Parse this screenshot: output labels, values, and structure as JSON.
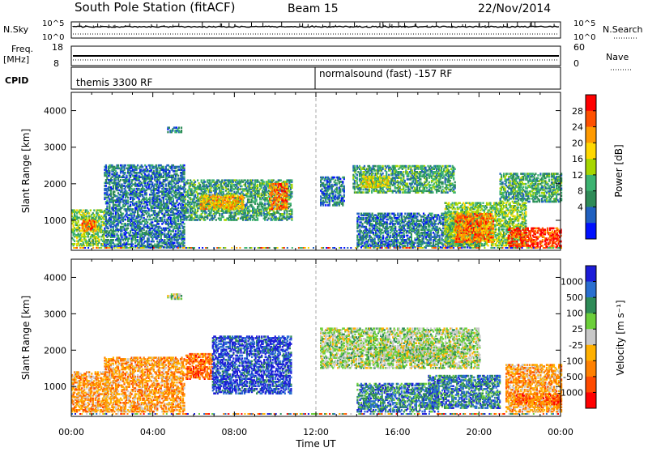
{
  "header": {
    "station": "South Pole Station (fitACF)",
    "beam": "Beam 15",
    "date": "22/Nov/2014"
  },
  "panels": {
    "nsky": {
      "left_label": "N.Sky",
      "right_label": "N.Search",
      "left_ticks": [
        "10^5",
        "10^0"
      ],
      "right_ticks": [
        "10^5",
        "10^0"
      ]
    },
    "freq": {
      "left_label_1": "Freq.",
      "left_label_2": "[MHz]",
      "right_label": "Nave",
      "left_ticks": [
        "18",
        "8"
      ],
      "right_ticks": [
        "60",
        "0"
      ]
    },
    "cpid": {
      "label": "CPID",
      "modes": [
        "themis 3300 RF",
        "normalsound (fast) -157 RF"
      ]
    }
  },
  "power_colorbar": {
    "title": "Power [dB]",
    "ticks": [
      "28",
      "24",
      "20",
      "16",
      "12",
      "8",
      "4"
    ],
    "colors": [
      "#ff0000",
      "#ff5000",
      "#ff9a00",
      "#ffd800",
      "#a6d600",
      "#3cb371",
      "#2e8b57",
      "#2060c0",
      "#0010ff"
    ]
  },
  "velocity_colorbar": {
    "title": "Velocity [m s⁻¹]",
    "ticks": [
      "1000",
      "500",
      "100",
      "25",
      "-25",
      "-100",
      "-500",
      "-1000"
    ],
    "colors": [
      "#1c1cd8",
      "#2a6fd0",
      "#2e8b57",
      "#6ccf3a",
      "#c8c8c8",
      "#ffb000",
      "#ff8000",
      "#ff4a00",
      "#ff0000"
    ]
  },
  "chart_data": {
    "type": "heatmap",
    "xlabel": "Time UT",
    "ylabel": "Slant Range [km]",
    "x_ticks": [
      "00:00",
      "04:00",
      "08:00",
      "12:00",
      "16:00",
      "20:00",
      "00:00"
    ],
    "y_ticks": [
      "1000",
      "2000",
      "3000",
      "4000"
    ],
    "xlim_hours": [
      0,
      24
    ],
    "ylim_km": [
      180,
      4500
    ],
    "power_regions": [
      {
        "t0": 0.0,
        "t1": 1.6,
        "r0": 300,
        "r1": 1300,
        "c": 5
      },
      {
        "t0": 0.5,
        "t1": 1.2,
        "r0": 700,
        "r1": 1000,
        "c": 2
      },
      {
        "t0": 4.7,
        "t1": 5.4,
        "r0": 3400,
        "r1": 3550,
        "c": 7
      },
      {
        "t0": 5.5,
        "t1": 10.8,
        "r0": 1000,
        "r1": 2100,
        "c": 6
      },
      {
        "t0": 6.3,
        "t1": 8.4,
        "r0": 1300,
        "r1": 1700,
        "c": 3
      },
      {
        "t0": 9.7,
        "t1": 10.6,
        "r0": 1300,
        "r1": 2000,
        "c": 2
      },
      {
        "t0": 1.6,
        "t1": 5.5,
        "r0": 250,
        "r1": 2500,
        "c": 7
      },
      {
        "t0": 12.2,
        "t1": 13.4,
        "r0": 1400,
        "r1": 2200,
        "c": 7
      },
      {
        "t0": 13.8,
        "t1": 18.8,
        "r0": 1750,
        "r1": 2500,
        "c": 6
      },
      {
        "t0": 14.2,
        "t1": 15.6,
        "r0": 1900,
        "r1": 2200,
        "c": 4
      },
      {
        "t0": 14.0,
        "t1": 20.0,
        "r0": 250,
        "r1": 1200,
        "c": 7
      },
      {
        "t0": 18.3,
        "t1": 22.3,
        "r0": 300,
        "r1": 1500,
        "c": 5
      },
      {
        "t0": 18.8,
        "t1": 20.7,
        "r0": 400,
        "r1": 1200,
        "c": 2
      },
      {
        "t0": 21.4,
        "t1": 24.0,
        "r0": 250,
        "r1": 800,
        "c": 1
      },
      {
        "t0": 21.0,
        "t1": 24.0,
        "r0": 1500,
        "r1": 2300,
        "c": 6
      }
    ],
    "velocity_regions": [
      {
        "t0": 0.0,
        "t1": 1.8,
        "r0": 300,
        "r1": 1400,
        "c": 6
      },
      {
        "t0": 1.6,
        "t1": 5.5,
        "r0": 300,
        "r1": 1800,
        "c": 6
      },
      {
        "t0": 4.7,
        "t1": 5.4,
        "r0": 3400,
        "r1": 3550,
        "c": 4
      },
      {
        "t0": 5.6,
        "t1": 6.9,
        "r0": 1200,
        "r1": 1900,
        "c": 7
      },
      {
        "t0": 6.9,
        "t1": 10.8,
        "r0": 800,
        "r1": 2400,
        "c": 1
      },
      {
        "t0": 12.2,
        "t1": 20.0,
        "r0": 1500,
        "r1": 2600,
        "c": 4
      },
      {
        "t0": 15.0,
        "t1": 18.8,
        "r0": 1700,
        "r1": 2100,
        "c": 4
      },
      {
        "t0": 14.0,
        "t1": 18.0,
        "r0": 300,
        "r1": 1100,
        "c": 2
      },
      {
        "t0": 17.5,
        "t1": 21.0,
        "r0": 400,
        "r1": 1300,
        "c": 2
      },
      {
        "t0": 21.3,
        "t1": 24.0,
        "r0": 300,
        "r1": 1600,
        "c": 6
      },
      {
        "t0": 21.8,
        "t1": 24.0,
        "r0": 500,
        "r1": 800,
        "c": 7
      }
    ]
  }
}
